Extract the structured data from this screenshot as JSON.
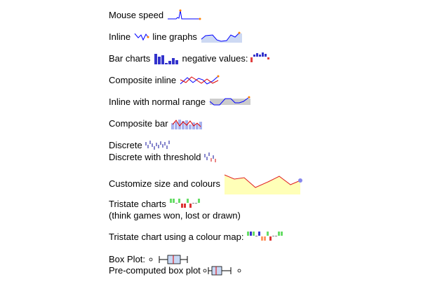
{
  "rows": {
    "mouse_speed": {
      "label": "Mouse speed"
    },
    "inline": {
      "label_before": "Inline",
      "label_after": "line graphs"
    },
    "bar": {
      "label_before": "Bar charts",
      "label_after": "negative values:"
    },
    "composite_inline": {
      "label": "Composite inline"
    },
    "normal_range": {
      "label": "Inline with normal range"
    },
    "composite_bar": {
      "label": "Composite bar"
    },
    "discrete": {
      "label": "Discrete"
    },
    "discrete_threshold": {
      "label": "Discrete with threshold"
    },
    "customize": {
      "label": "Customize size and colours"
    },
    "tristate": {
      "label": "Tristate charts",
      "sublabel": "(think games won, lost or drawn)"
    },
    "tristate_map": {
      "label": "Tristate chart using a colour map:"
    },
    "box": {
      "label": "Box Plot:"
    },
    "precomputed_box": {
      "label": "Pre-computed box plot"
    }
  },
  "colors": {
    "line": "#0000ff",
    "spot": "#ff8000",
    "fill_light": "#cdd9f3",
    "bar_pos": "#3333cc",
    "bar_neg": "#e04040",
    "composite_red": "#dd0000",
    "composite_bar_fill": "#a8b2ee",
    "custom_line": "#e02020",
    "custom_fill": "#ffffb8",
    "custom_spot": "#8888ee",
    "tri_pos": "#66dd66",
    "tri_neg": "#dd3333",
    "tri_zero": "#888888",
    "normal_band": "#cccccc",
    "box_fill": "#c8d8f4"
  }
}
